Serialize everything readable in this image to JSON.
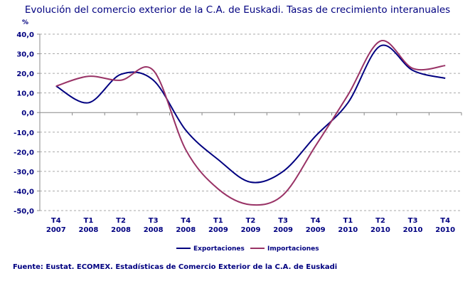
{
  "chart_data": {
    "type": "line",
    "title": "Evolución del comercio exterior de la C.A. de Euskadi. Tasas de crecimiento interanuales",
    "ylabel": "%",
    "ylim": [
      -50,
      40
    ],
    "yticks": [
      "40,0",
      "30,0",
      "20,0",
      "10,0",
      "0,0",
      "-10,0",
      "-20,0",
      "-30,0",
      "-40,0",
      "-50,0"
    ],
    "ytick_values": [
      40,
      30,
      20,
      10,
      0,
      -10,
      -20,
      -30,
      -40,
      -50
    ],
    "grid": true,
    "legend": "bottom",
    "categories": [
      [
        "T4",
        "2007"
      ],
      [
        "T1",
        "2008"
      ],
      [
        "T2",
        "2008"
      ],
      [
        "T3",
        "2008"
      ],
      [
        "T4",
        "2008"
      ],
      [
        "T1",
        "2009"
      ],
      [
        "T2",
        "2009"
      ],
      [
        "T3",
        "2009"
      ],
      [
        "T4",
        "2009"
      ],
      [
        "T1",
        "2010"
      ],
      [
        "T2",
        "2010"
      ],
      [
        "T3",
        "2010"
      ],
      [
        "T4",
        "2010"
      ]
    ],
    "series": [
      {
        "name": "Exportaciones",
        "color": "#000080",
        "values": [
          13.5,
          5,
          19.5,
          16.5,
          -9,
          -24,
          -35.5,
          -30,
          -12,
          5,
          34,
          21.5,
          17.5
        ]
      },
      {
        "name": "Importaciones",
        "color": "#993366",
        "values": [
          13.5,
          18.5,
          16.5,
          21.5,
          -19,
          -39,
          -47,
          -42,
          -17,
          9,
          36.5,
          22.5,
          24
        ]
      }
    ]
  },
  "source": "Fuente: Eustat. ECOMEX. Estadísticas de Comercio Exterior de la C.A. de Euskadi"
}
